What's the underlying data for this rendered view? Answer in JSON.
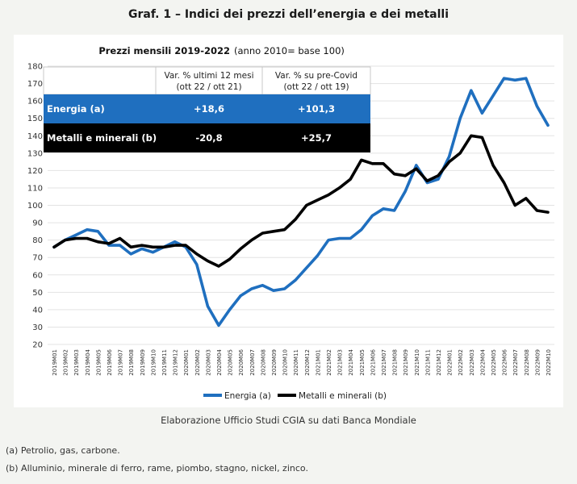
{
  "page": {
    "title": "Graf. 1 – Indici dei prezzi dell’energia e dei metalli",
    "source": "Elaborazione Ufficio Studi CGIA su dati Banca Mondiale",
    "notes": [
      "(a) Petrolio, gas, carbone.",
      "(b) Alluminio, minerale di ferro, rame, piombo, stagno, nickel, zinco."
    ]
  },
  "colors": {
    "energia": "#1f6fbf",
    "metalli": "#000000",
    "table_blue": "#1f6fbf",
    "table_black": "#000000"
  },
  "table": {
    "headers": [
      "Var. % ultimi 12 mesi",
      "(ott 22 / ott 21)",
      "Var. % su pre-Covid",
      "(ott 22 / ott 19)"
    ],
    "rows": [
      {
        "label": "Energia (a)",
        "v1": "+18,6",
        "v2": "+101,3"
      },
      {
        "label": "Metalli e minerali (b)",
        "v1": "-20,8",
        "v2": "+25,7"
      }
    ]
  },
  "chart_data": {
    "type": "line",
    "title": "Prezzi mensili 2019-2022",
    "subtitle": "(anno 2010= base 100)",
    "ylim": [
      20,
      180
    ],
    "yticks": [
      20,
      30,
      40,
      50,
      60,
      70,
      80,
      90,
      100,
      110,
      120,
      130,
      140,
      150,
      160,
      170,
      180
    ],
    "categories": [
      "2019M01",
      "2019M02",
      "2019M03",
      "2019M04",
      "2019M05",
      "2019M06",
      "2019M07",
      "2019M08",
      "2019M09",
      "2019M10",
      "2019M11",
      "2019M12",
      "2020M01",
      "2020M02",
      "2020M03",
      "2020M04",
      "2020M05",
      "2020M06",
      "2020M07",
      "2020M08",
      "2020M09",
      "2020M10",
      "2020M11",
      "2020M12",
      "2021M01",
      "2021M02",
      "2021M03",
      "2021M04",
      "2021M05",
      "2021M06",
      "2021M07",
      "2021M08",
      "2021M09",
      "2021M10",
      "2021M11",
      "2021M12",
      "2022M01",
      "2022M02",
      "2022M03",
      "2022M04",
      "2022M05",
      "2022M06",
      "2022M07",
      "2022M08",
      "2022M09",
      "2022M10"
    ],
    "series": [
      {
        "name": "Energia (a)",
        "values": [
          76,
          80,
          83,
          86,
          85,
          77,
          77,
          72,
          75,
          73,
          76,
          79,
          76,
          66,
          42,
          31,
          40,
          48,
          52,
          54,
          51,
          52,
          57,
          64,
          71,
          80,
          81,
          81,
          86,
          94,
          98,
          97,
          108,
          123,
          113,
          115,
          128,
          150,
          166,
          153,
          163,
          173,
          172,
          173,
          157,
          146
        ]
      },
      {
        "name": "Metalli e minerali (b)",
        "values": [
          76,
          80,
          81,
          81,
          79,
          78,
          81,
          76,
          77,
          76,
          76,
          77,
          77,
          72,
          68,
          65,
          69,
          75,
          80,
          84,
          85,
          86,
          92,
          100,
          103,
          106,
          110,
          115,
          126,
          124,
          124,
          118,
          117,
          121,
          114,
          117,
          125,
          130,
          140,
          139,
          123,
          113,
          100,
          104,
          97,
          96
        ]
      }
    ]
  }
}
